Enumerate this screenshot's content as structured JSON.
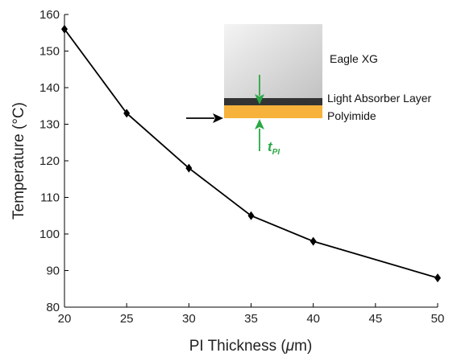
{
  "chart_data": {
    "type": "line",
    "xlabel_main": "PI Thickness (",
    "xlabel_unit_greek": "μ",
    "xlabel_unit_rest": "m)",
    "ylabel": "Temperature (°C)",
    "xlim": [
      20,
      50
    ],
    "ylim": [
      80,
      160
    ],
    "xticks": [
      "20",
      "25",
      "30",
      "35",
      "40",
      "45",
      "50"
    ],
    "yticks": [
      "80",
      "90",
      "100",
      "110",
      "120",
      "130",
      "140",
      "150",
      "160"
    ],
    "grid": false,
    "marker": "diamond",
    "series": [
      {
        "x": [
          20,
          25,
          30,
          35,
          40,
          50
        ],
        "y": [
          156,
          133,
          118,
          105,
          98,
          88
        ],
        "color": "#000000"
      }
    ],
    "inset": {
      "glass_label": "Eagle XG",
      "absorber_label": "Light Absorber Layer",
      "polyimide_label": "Polyimide",
      "thickness_label_main": "t",
      "thickness_label_sub": "PI",
      "thickness_color": "#2aa845",
      "polyimide_color": "#f7b23b",
      "absorber_color": "#333333"
    }
  }
}
